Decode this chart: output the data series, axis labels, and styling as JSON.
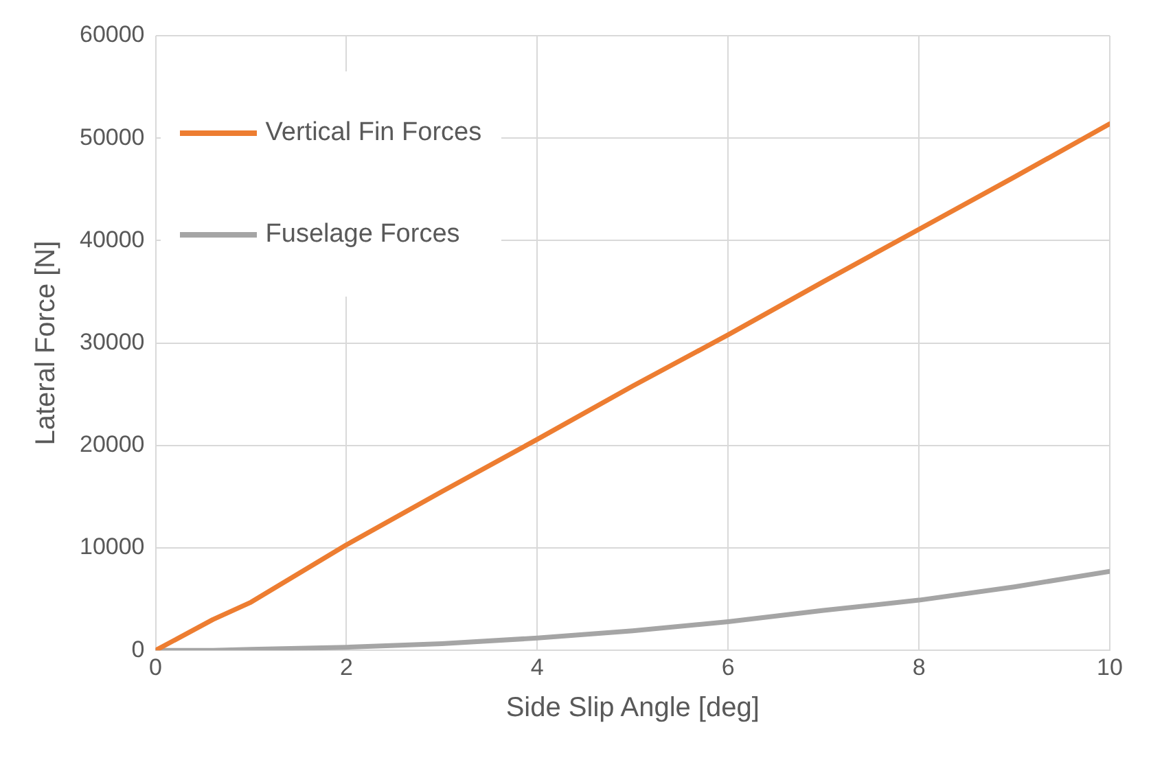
{
  "chart_data": {
    "type": "line",
    "xlabel": "Side Slip Angle [deg]",
    "ylabel": "Lateral Force [N]",
    "x": [
      0,
      0.6,
      1,
      2,
      3,
      4,
      5,
      6,
      7,
      8,
      9,
      10
    ],
    "series": [
      {
        "name": "Vertical Fin Forces",
        "color": "#ed7d31",
        "values": [
          0,
          3000,
          4700,
          10300,
          15500,
          20600,
          25800,
          30800,
          36000,
          41100,
          46200,
          51400
        ]
      },
      {
        "name": "Fuselage Forces",
        "color": "#a5a5a5",
        "values": [
          0,
          0,
          100,
          300,
          650,
          1200,
          1900,
          2800,
          3900,
          4900,
          6200,
          7700
        ]
      }
    ],
    "xlim": [
      0,
      10
    ],
    "xticks": [
      0,
      2,
      4,
      6,
      8,
      10
    ],
    "ylim": [
      0,
      60000
    ],
    "yticks": [
      0,
      10000,
      20000,
      30000,
      40000,
      50000,
      60000
    ],
    "grid": true,
    "legend": "top left",
    "marker": "none",
    "line_style": "solid"
  }
}
